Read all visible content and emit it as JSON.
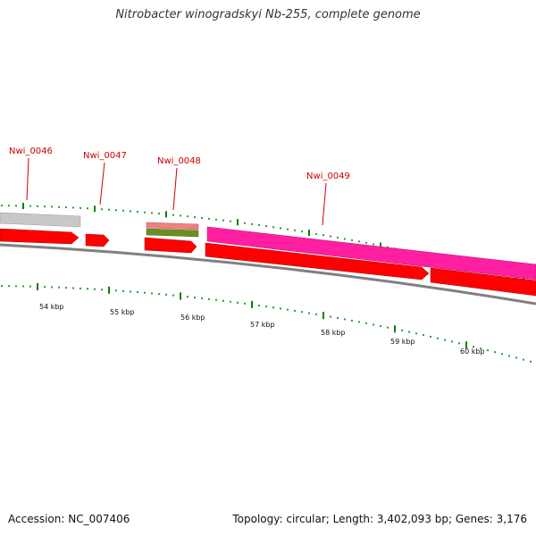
{
  "title": "Nitrobacter winogradskyi Nb-255, complete genome",
  "footer": {
    "accession": "Accession: NC_007406",
    "summary": "Topology: circular; Length: 3,402,093 bp; Genes: 3,176"
  },
  "gene_labels": [
    "Nwi_0046",
    "Nwi_0047",
    "Nwi_0048",
    "Nwi_0049"
  ],
  "scale_labels": [
    "54 kbp",
    "55 kbp",
    "56 kbp",
    "57 kbp",
    "58 kbp",
    "59 kbp",
    "60 kbp"
  ],
  "colors": {
    "gene_label": "#cc0000",
    "cds_forward": "#ff0000",
    "cds_reverse_gray": "#c8c8c8",
    "rna_magenta": "#ff1fa0",
    "feature_salmon": "#f08080",
    "feature_green": "#6b8e23",
    "backbone": "#808080",
    "tick": "#008000"
  }
}
